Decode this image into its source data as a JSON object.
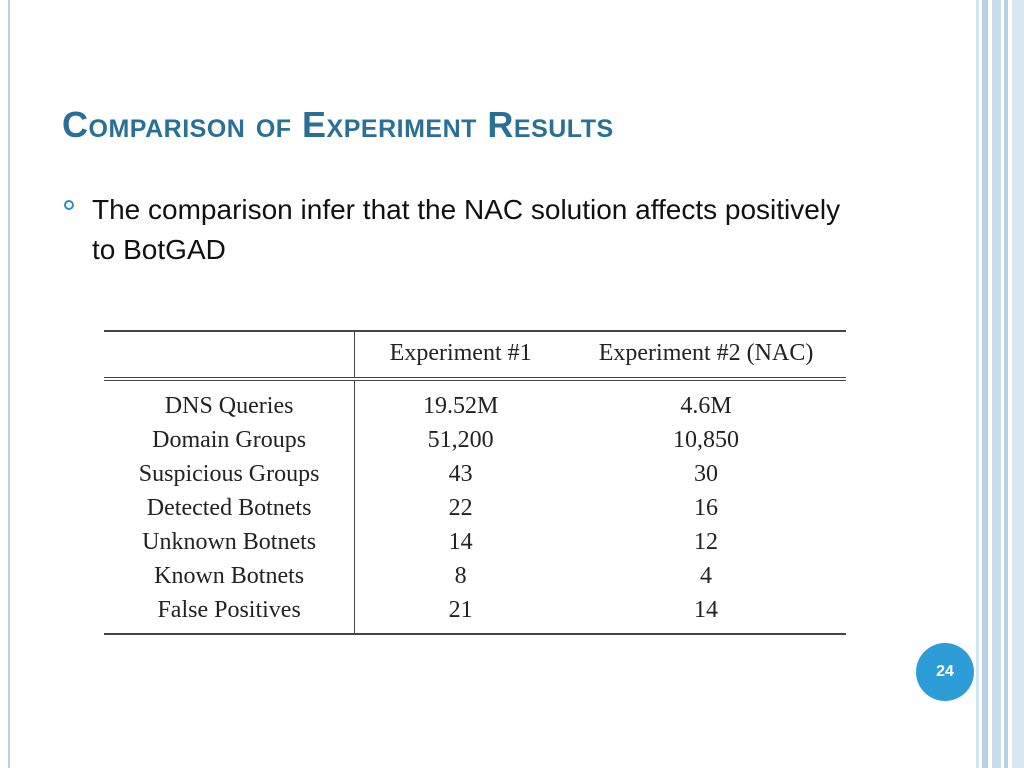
{
  "slide": {
    "title": "Comparison of Experiment Results",
    "bullet": "The comparison infer that the NAC solution affects positively to BotGAD",
    "page_number": "24"
  },
  "table": {
    "headers": [
      "",
      "Experiment #1",
      "Experiment #2 (NAC)"
    ],
    "rows": [
      [
        "DNS Queries",
        "19.52M",
        "4.6M"
      ],
      [
        "Domain Groups",
        "51,200",
        "10,850"
      ],
      [
        "Suspicious Groups",
        "43",
        "30"
      ],
      [
        "Detected Botnets",
        "22",
        "16"
      ],
      [
        "Unknown Botnets",
        "14",
        "12"
      ],
      [
        "Known Botnets",
        "8",
        "4"
      ],
      [
        "False Positives",
        "21",
        "14"
      ]
    ]
  },
  "colors": {
    "title": "#2a6f96",
    "bullet": "#2a8fc4",
    "badge": "#2e9cd6",
    "stripes": "#b7d1e3"
  }
}
